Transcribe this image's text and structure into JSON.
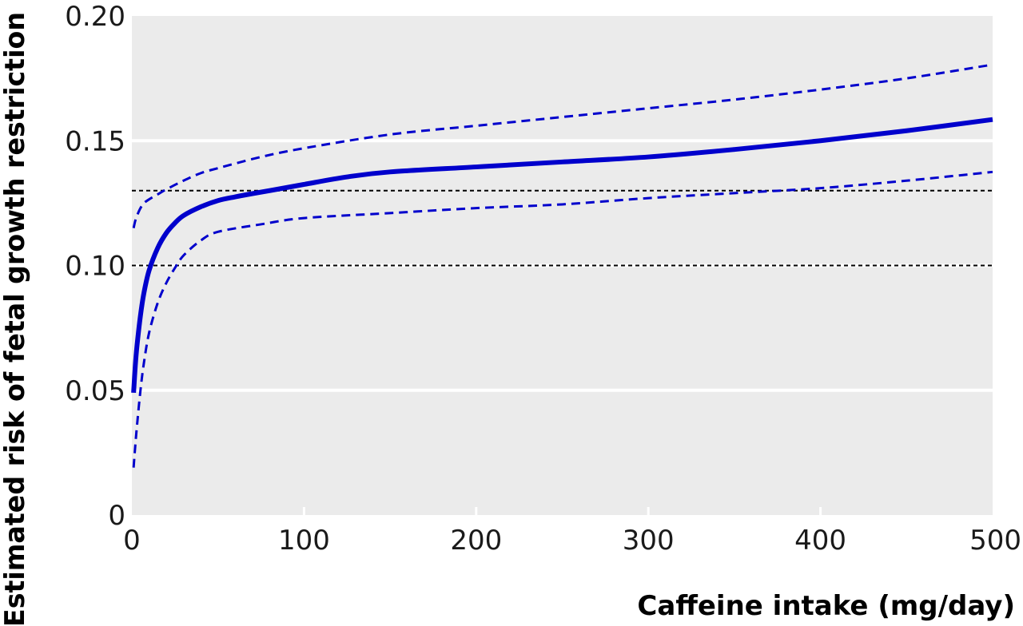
{
  "chart_data": {
    "type": "line",
    "title": "",
    "xlabel": "Caffeine intake (mg/day)",
    "ylabel": "Estimated risk of fetal growth restriction",
    "xlim": [
      0,
      500
    ],
    "ylim": [
      0,
      0.2
    ],
    "x_ticks": [
      {
        "value": 0,
        "label": "0"
      },
      {
        "value": 100,
        "label": "100"
      },
      {
        "value": 200,
        "label": "200"
      },
      {
        "value": 300,
        "label": "300"
      },
      {
        "value": 400,
        "label": "400"
      },
      {
        "value": 500,
        "label": "500"
      }
    ],
    "y_ticks": [
      {
        "value": 0,
        "label": "0"
      },
      {
        "value": 0.05,
        "label": "0.05"
      },
      {
        "value": 0.1,
        "label": "0.10"
      },
      {
        "value": 0.15,
        "label": "0.15"
      },
      {
        "value": 0.2,
        "label": "0.20"
      }
    ],
    "grid": "horizontal-white",
    "legend": "none",
    "plot_background": "#ebebeb",
    "reference_lines": [
      {
        "y": 0.13,
        "style": "dotted",
        "color": "#000000"
      },
      {
        "y": 0.1,
        "style": "dotted",
        "color": "#000000"
      }
    ],
    "series": [
      {
        "style": "solid",
        "color": "#0000cc",
        "x": [
          1,
          2,
          3,
          5,
          7,
          10,
          15,
          20,
          25,
          30,
          40,
          50,
          60,
          70,
          80,
          100,
          125,
          150,
          200,
          250,
          300,
          350,
          400,
          450,
          500
        ],
        "y": [
          0.049,
          0.06,
          0.068,
          0.08,
          0.089,
          0.098,
          0.107,
          0.113,
          0.117,
          0.12,
          0.1235,
          0.126,
          0.1275,
          0.1288,
          0.13,
          0.1325,
          0.1355,
          0.1375,
          0.1395,
          0.1415,
          0.1435,
          0.1465,
          0.15,
          0.154,
          0.1585
        ]
      },
      {
        "style": "dashed",
        "color": "#0000cc",
        "x": [
          1,
          2,
          3,
          5,
          7,
          10,
          15,
          20,
          30,
          40,
          50,
          75,
          100,
          150,
          200,
          250,
          300,
          350,
          400,
          450,
          500
        ],
        "y": [
          0.115,
          0.118,
          0.12,
          0.123,
          0.125,
          0.1265,
          0.1285,
          0.1305,
          0.134,
          0.137,
          0.139,
          0.1435,
          0.147,
          0.1525,
          0.156,
          0.1595,
          0.163,
          0.1665,
          0.1705,
          0.175,
          0.1805
        ]
      },
      {
        "style": "dashed",
        "color": "#0000cc",
        "x": [
          1,
          2,
          3,
          5,
          7,
          10,
          15,
          20,
          25,
          30,
          40,
          50,
          75,
          100,
          150,
          200,
          250,
          300,
          350,
          400,
          450,
          500
        ],
        "y": [
          0.019,
          0.028,
          0.036,
          0.05,
          0.061,
          0.073,
          0.085,
          0.093,
          0.099,
          0.104,
          0.11,
          0.1135,
          0.1165,
          0.119,
          0.121,
          0.123,
          0.1245,
          0.127,
          0.129,
          0.131,
          0.134,
          0.1375
        ]
      }
    ]
  }
}
